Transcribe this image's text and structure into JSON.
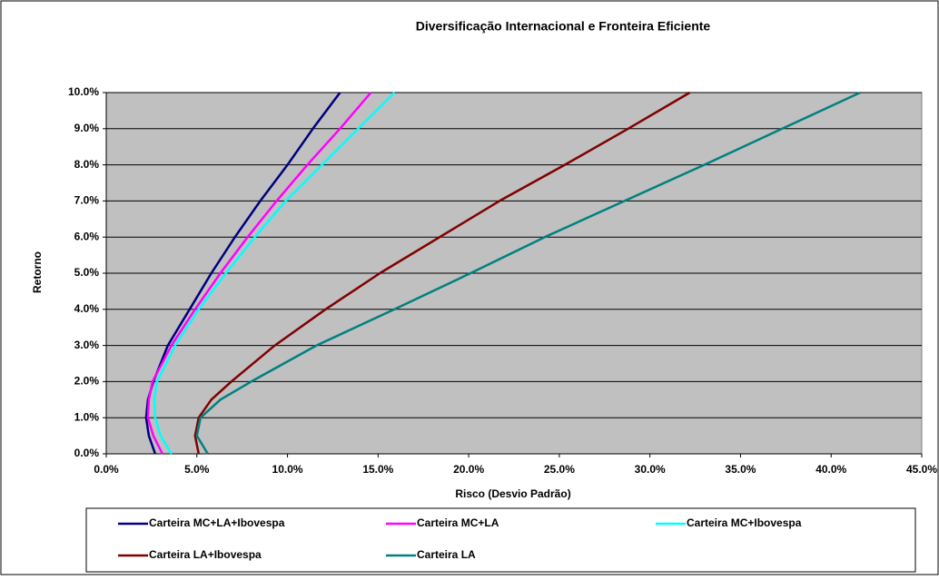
{
  "chart_data": {
    "type": "line",
    "title": "Diversificação Internacional e Fronteira Eficiente",
    "x_label": "Risco (Desvio Padrão)",
    "y_label": "Retorno",
    "xlim": [
      0,
      45
    ],
    "ylim": [
      0,
      10
    ],
    "xticks": [
      {
        "value": 0,
        "label": "0.0%"
      },
      {
        "value": 5,
        "label": "5.0%"
      },
      {
        "value": 10,
        "label": "10.0%"
      },
      {
        "value": 15,
        "label": "15.0%"
      },
      {
        "value": 20,
        "label": "20.0%"
      },
      {
        "value": 25,
        "label": "25.0%"
      },
      {
        "value": 30,
        "label": "30.0%"
      },
      {
        "value": 35,
        "label": "35.0%"
      },
      {
        "value": 40,
        "label": "40.0%"
      },
      {
        "value": 45,
        "label": "45.0%"
      }
    ],
    "yticks": [
      {
        "value": 0,
        "label": "0.0%"
      },
      {
        "value": 1,
        "label": "1.0%"
      },
      {
        "value": 2,
        "label": "2.0%"
      },
      {
        "value": 3,
        "label": "3.0%"
      },
      {
        "value": 4,
        "label": "4.0%"
      },
      {
        "value": 5,
        "label": "5.0%"
      },
      {
        "value": 6,
        "label": "6.0%"
      },
      {
        "value": 7,
        "label": "7.0%"
      },
      {
        "value": 8,
        "label": "8.0%"
      },
      {
        "value": 9,
        "label": "9.0%"
      },
      {
        "value": 10,
        "label": "10.0%"
      }
    ],
    "grid": true,
    "legend": "bottom",
    "series": [
      {
        "name": "Carteira MC+LA+Ibovespa",
        "color": "#000080",
        "x": [
          2.7,
          2.35,
          2.2,
          2.3,
          2.6,
          3.4,
          4.6,
          5.8,
          7.1,
          8.5,
          10.0,
          11.4,
          12.9
        ],
        "values": [
          0,
          0.5,
          1,
          1.5,
          2,
          3,
          4,
          5,
          6,
          7,
          8,
          9,
          10
        ]
      },
      {
        "name": "Carteira MC+LA",
        "color": "#ff00ff",
        "x": [
          3.1,
          2.6,
          2.3,
          2.35,
          2.55,
          3.6,
          4.9,
          6.3,
          7.8,
          9.4,
          11.1,
          12.9,
          14.6
        ],
        "values": [
          0,
          0.5,
          1,
          1.5,
          2,
          3,
          4,
          5,
          6,
          7,
          8,
          9,
          10
        ]
      },
      {
        "name": "Carteira MC+Ibovespa",
        "color": "#00ffff",
        "x": [
          3.6,
          3.0,
          2.7,
          2.65,
          2.8,
          3.8,
          5.1,
          6.6,
          8.2,
          9.9,
          11.9,
          13.9,
          15.9
        ],
        "values": [
          0,
          0.5,
          1,
          1.5,
          2,
          3,
          4,
          5,
          6,
          7,
          8,
          9,
          10
        ]
      },
      {
        "name": "Carteira LA+Ibovespa",
        "color": "#800000",
        "x": [
          5.1,
          4.9,
          5.1,
          5.8,
          6.9,
          9.3,
          12.1,
          15.1,
          18.4,
          21.7,
          25.3,
          28.8,
          32.2
        ],
        "values": [
          0,
          0.5,
          1,
          1.5,
          2,
          3,
          4,
          5,
          6,
          7,
          8,
          9,
          10
        ]
      },
      {
        "name": "Carteira LA",
        "color": "#008080",
        "x": [
          5.6,
          5.0,
          5.2,
          6.3,
          8.0,
          11.6,
          15.9,
          20.1,
          24.2,
          28.6,
          33.0,
          37.3,
          41.6
        ],
        "values": [
          0,
          0.5,
          1,
          1.5,
          2,
          3,
          4,
          5,
          6,
          7,
          8,
          9,
          10
        ]
      }
    ]
  }
}
